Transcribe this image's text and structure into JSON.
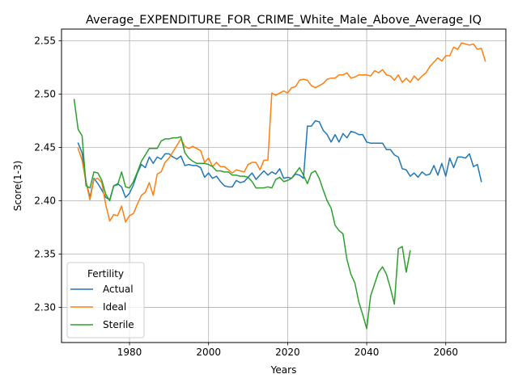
{
  "chart_data": {
    "type": "line",
    "title": "Average_EXPENDITURE_FOR_CRIME_White_Male_Above_Average_IQ",
    "xlabel": "Years",
    "ylabel": "Score(1-3)",
    "xlim": [
      1962.8,
      2075.2
    ],
    "ylim": [
      2.267,
      2.561
    ],
    "xticks": [
      1980,
      2000,
      2020,
      2040,
      2060
    ],
    "yticks": [
      2.3,
      2.35,
      2.4,
      2.45,
      2.5,
      2.55
    ],
    "xtick_labels": [
      "1980",
      "2000",
      "2020",
      "2040",
      "2060"
    ],
    "ytick_labels": [
      "2.30",
      "2.35",
      "2.40",
      "2.45",
      "2.50",
      "2.55"
    ],
    "grid": true,
    "legend": {
      "title": "Fertility",
      "placement": "lower-left"
    },
    "series": [
      {
        "name": "Actual",
        "color": "#1f77b4",
        "x_start": 1967,
        "values": [
          2.454,
          2.445,
          2.418,
          2.403,
          2.421,
          2.416,
          2.41,
          2.403,
          2.401,
          2.414,
          2.416,
          2.413,
          2.403,
          2.407,
          2.415,
          2.426,
          2.434,
          2.431,
          2.441,
          2.435,
          2.441,
          2.439,
          2.444,
          2.444,
          2.441,
          2.439,
          2.442,
          2.433,
          2.434,
          2.433,
          2.433,
          2.431,
          2.422,
          2.426,
          2.421,
          2.423,
          2.418,
          2.414,
          2.413,
          2.413,
          2.419,
          2.417,
          2.418,
          2.422,
          2.426,
          2.42,
          2.424,
          2.428,
          2.424,
          2.427,
          2.425,
          2.43,
          2.421,
          2.422,
          2.421,
          2.425,
          2.424,
          2.421,
          2.47,
          2.47,
          2.475,
          2.474,
          2.466,
          2.462,
          2.455,
          2.462,
          2.455,
          2.463,
          2.459,
          2.465,
          2.464,
          2.462,
          2.462,
          2.455,
          2.454,
          2.454,
          2.454,
          2.454,
          2.448,
          2.448,
          2.443,
          2.441,
          2.43,
          2.429,
          2.423,
          2.426,
          2.422,
          2.427,
          2.424,
          2.425,
          2.433,
          2.424,
          2.435,
          2.423,
          2.44,
          2.431,
          2.441,
          2.441,
          2.44,
          2.444,
          2.432,
          2.434,
          2.418
        ]
      },
      {
        "name": "Ideal",
        "color": "#ff7f0e",
        "x_start": 1967,
        "values": [
          2.449,
          2.438,
          2.417,
          2.401,
          2.42,
          2.421,
          2.417,
          2.396,
          2.381,
          2.387,
          2.386,
          2.395,
          2.38,
          2.386,
          2.388,
          2.397,
          2.405,
          2.408,
          2.417,
          2.405,
          2.425,
          2.427,
          2.436,
          2.44,
          2.446,
          2.452,
          2.458,
          2.451,
          2.449,
          2.451,
          2.449,
          2.447,
          2.436,
          2.44,
          2.432,
          2.436,
          2.432,
          2.432,
          2.429,
          2.426,
          2.429,
          2.428,
          2.427,
          2.434,
          2.436,
          2.436,
          2.429,
          2.438,
          2.438,
          2.501,
          2.499,
          2.501,
          2.503,
          2.501,
          2.506,
          2.507,
          2.513,
          2.514,
          2.513,
          2.508,
          2.506,
          2.508,
          2.51,
          2.514,
          2.515,
          2.515,
          2.518,
          2.518,
          2.52,
          2.515,
          2.516,
          2.518,
          2.518,
          2.518,
          2.517,
          2.522,
          2.52,
          2.523,
          2.518,
          2.517,
          2.513,
          2.518,
          2.511,
          2.515,
          2.511,
          2.517,
          2.513,
          2.517,
          2.52,
          2.526,
          2.53,
          2.534,
          2.531,
          2.536,
          2.536,
          2.544,
          2.542,
          2.548,
          2.547,
          2.546,
          2.547,
          2.542,
          2.543,
          2.531
        ]
      },
      {
        "name": "Sterile",
        "color": "#2ca02c",
        "x_start": 1966,
        "values": [
          2.495,
          2.467,
          2.461,
          2.414,
          2.412,
          2.427,
          2.426,
          2.419,
          2.406,
          2.4,
          2.414,
          2.415,
          2.427,
          2.413,
          2.412,
          2.418,
          2.427,
          2.437,
          2.443,
          2.449,
          2.449,
          2.449,
          2.456,
          2.458,
          2.458,
          2.459,
          2.459,
          2.46,
          2.445,
          2.44,
          2.437,
          2.435,
          2.435,
          2.435,
          2.434,
          2.432,
          2.428,
          2.428,
          2.427,
          2.427,
          2.424,
          2.424,
          2.423,
          2.423,
          2.422,
          2.418,
          2.412,
          2.412,
          2.412,
          2.413,
          2.412,
          2.42,
          2.422,
          2.418,
          2.419,
          2.421,
          2.426,
          2.431,
          2.424,
          2.416,
          2.426,
          2.428,
          2.421,
          2.41,
          2.4,
          2.393,
          2.377,
          2.372,
          2.369,
          2.345,
          2.331,
          2.323,
          2.305,
          2.293,
          2.28,
          2.311,
          2.322,
          2.333,
          2.338,
          2.331,
          2.318,
          2.303,
          2.355,
          2.357,
          2.333,
          2.353
        ]
      }
    ]
  }
}
